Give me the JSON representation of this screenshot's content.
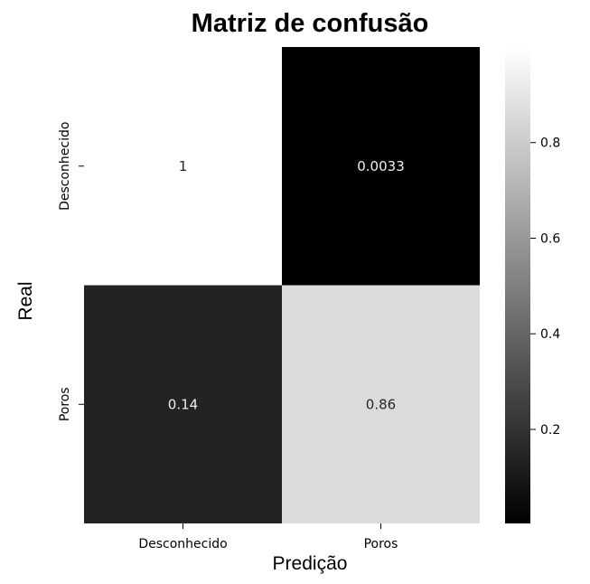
{
  "chart_data": {
    "type": "heatmap",
    "title": "Matriz de confusão",
    "xlabel": "Predição",
    "ylabel": "Real",
    "x_categories": [
      "Desconhecido",
      "Poros"
    ],
    "y_categories": [
      "Desconhecido",
      "Poros"
    ],
    "values": [
      [
        1,
        0.0033
      ],
      [
        0.14,
        0.86
      ]
    ],
    "cell_labels": [
      [
        "1",
        "0.0033"
      ],
      [
        "0.14",
        "0.86"
      ]
    ],
    "colormap": "gray",
    "colorbar": {
      "range": [
        0.0033,
        1
      ],
      "ticks": [
        0.2,
        0.4,
        0.6,
        0.8
      ],
      "tick_labels": [
        "0.2",
        "0.4",
        "0.6",
        "0.8"
      ]
    },
    "colors": {
      "low": "#000000",
      "high": "#ffffff",
      "text_on_dark": "#eeeeee",
      "text_on_light": "#262626"
    }
  }
}
